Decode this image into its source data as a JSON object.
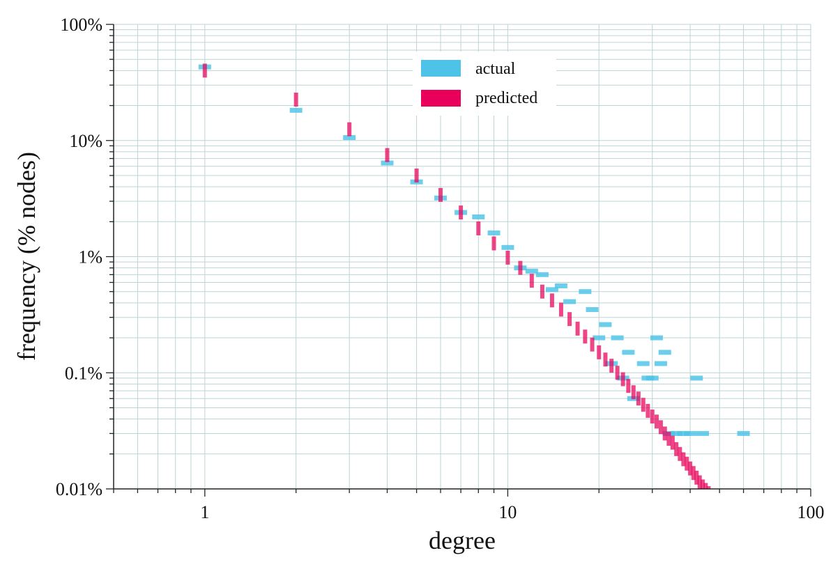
{
  "chart_data": {
    "type": "scatter",
    "xlabel": "degree",
    "ylabel": "frequency (% nodes)",
    "x_scale": "log",
    "y_scale": "log",
    "xlim": [
      0.5,
      100
    ],
    "ylim": [
      0.01,
      100
    ],
    "x_ticks": [
      {
        "value": 1,
        "label": "1"
      },
      {
        "value": 10,
        "label": "10"
      },
      {
        "value": 100,
        "label": "100"
      }
    ],
    "y_ticks": [
      {
        "value": 0.01,
        "label": "0.01%"
      },
      {
        "value": 0.1,
        "label": "0.1%"
      },
      {
        "value": 1,
        "label": "1%"
      },
      {
        "value": 10,
        "label": "10%"
      },
      {
        "value": 100,
        "label": "100%"
      }
    ],
    "grid": true,
    "legend_position": "top-center",
    "series": [
      {
        "name": "actual",
        "color": "#4dc3e8",
        "points": [
          [
            1,
            43
          ],
          [
            2,
            18.2
          ],
          [
            3,
            10.6
          ],
          [
            4,
            6.4
          ],
          [
            5,
            4.4
          ],
          [
            6,
            3.2
          ],
          [
            7,
            2.4
          ],
          [
            8,
            2.2
          ],
          [
            9,
            1.6
          ],
          [
            10,
            1.2
          ],
          [
            11,
            0.8
          ],
          [
            12,
            0.75
          ],
          [
            13,
            0.7
          ],
          [
            14,
            0.52
          ],
          [
            15,
            0.56
          ],
          [
            16,
            0.41
          ],
          [
            18,
            0.5
          ],
          [
            19,
            0.35
          ],
          [
            20,
            0.2
          ],
          [
            21,
            0.26
          ],
          [
            22,
            0.12
          ],
          [
            23,
            0.2
          ],
          [
            24,
            0.09
          ],
          [
            25,
            0.15
          ],
          [
            26,
            0.06
          ],
          [
            28,
            0.12
          ],
          [
            29,
            0.09
          ],
          [
            30,
            0.09
          ],
          [
            31,
            0.2
          ],
          [
            32,
            0.12
          ],
          [
            33,
            0.15
          ],
          [
            34,
            0.03
          ],
          [
            36,
            0.03
          ],
          [
            38,
            0.03
          ],
          [
            40,
            0.03
          ],
          [
            42,
            0.09
          ],
          [
            44,
            0.03
          ],
          [
            60,
            0.03
          ]
        ]
      },
      {
        "name": "predicted",
        "color": "#e8005a",
        "points": [
          [
            1,
            40
          ],
          [
            2,
            22.5
          ],
          [
            3,
            12.5
          ],
          [
            4,
            7.5
          ],
          [
            5,
            5.0
          ],
          [
            6,
            3.4
          ],
          [
            7,
            2.4
          ],
          [
            8,
            1.75
          ],
          [
            9,
            1.3
          ],
          [
            10,
            0.98
          ],
          [
            11,
            0.8
          ],
          [
            12,
            0.62
          ],
          [
            13,
            0.5
          ],
          [
            14,
            0.42
          ],
          [
            15,
            0.35
          ],
          [
            16,
            0.29
          ],
          [
            17,
            0.24
          ],
          [
            18,
            0.205
          ],
          [
            19,
            0.175
          ],
          [
            20,
            0.15
          ],
          [
            21,
            0.13
          ],
          [
            22,
            0.115
          ],
          [
            23,
            0.1
          ],
          [
            24,
            0.088
          ],
          [
            25,
            0.077
          ],
          [
            26,
            0.068
          ],
          [
            27,
            0.06
          ],
          [
            28,
            0.053
          ],
          [
            29,
            0.047
          ],
          [
            30,
            0.042
          ],
          [
            31,
            0.038
          ],
          [
            32,
            0.034
          ],
          [
            33,
            0.03
          ],
          [
            34,
            0.027
          ],
          [
            35,
            0.025
          ],
          [
            36,
            0.022
          ],
          [
            37,
            0.02
          ],
          [
            38,
            0.018
          ],
          [
            39,
            0.0165
          ],
          [
            40,
            0.015
          ],
          [
            41,
            0.0137
          ],
          [
            42,
            0.0125
          ],
          [
            43,
            0.0114
          ],
          [
            44,
            0.0105
          ],
          [
            45,
            0.0098
          ],
          [
            46,
            0.0092
          ],
          [
            47,
            0.0087
          ],
          [
            48,
            0.0083
          ],
          [
            49,
            0.008
          ]
        ]
      }
    ]
  }
}
